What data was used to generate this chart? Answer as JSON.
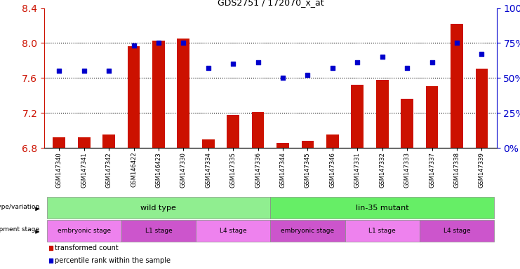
{
  "title": "GDS2751 / 172070_x_at",
  "samples": [
    "GSM147340",
    "GSM147341",
    "GSM147342",
    "GSM146422",
    "GSM146423",
    "GSM147330",
    "GSM147334",
    "GSM147335",
    "GSM147336",
    "GSM147344",
    "GSM147345",
    "GSM147346",
    "GSM147331",
    "GSM147332",
    "GSM147333",
    "GSM147337",
    "GSM147338",
    "GSM147339"
  ],
  "transformed_count": [
    6.92,
    6.92,
    6.95,
    7.96,
    8.03,
    8.05,
    6.9,
    7.18,
    7.21,
    6.86,
    6.88,
    6.95,
    7.52,
    7.58,
    7.36,
    7.51,
    8.22,
    7.71
  ],
  "percentile_rank": [
    55,
    55,
    55,
    73,
    75,
    75,
    57,
    60,
    61,
    50,
    52,
    57,
    61,
    65,
    57,
    61,
    75,
    67
  ],
  "ylim_left": [
    6.8,
    8.4
  ],
  "ylim_right": [
    0,
    100
  ],
  "yticks_left": [
    6.8,
    7.2,
    7.6,
    8.0,
    8.4
  ],
  "yticks_right": [
    0,
    25,
    50,
    75,
    100
  ],
  "bar_color": "#cc1100",
  "dot_color": "#0000cc",
  "title_color": "#000000",
  "left_tick_color": "#cc1100",
  "right_tick_color": "#0000cc",
  "bg_color": "#ffffff"
}
